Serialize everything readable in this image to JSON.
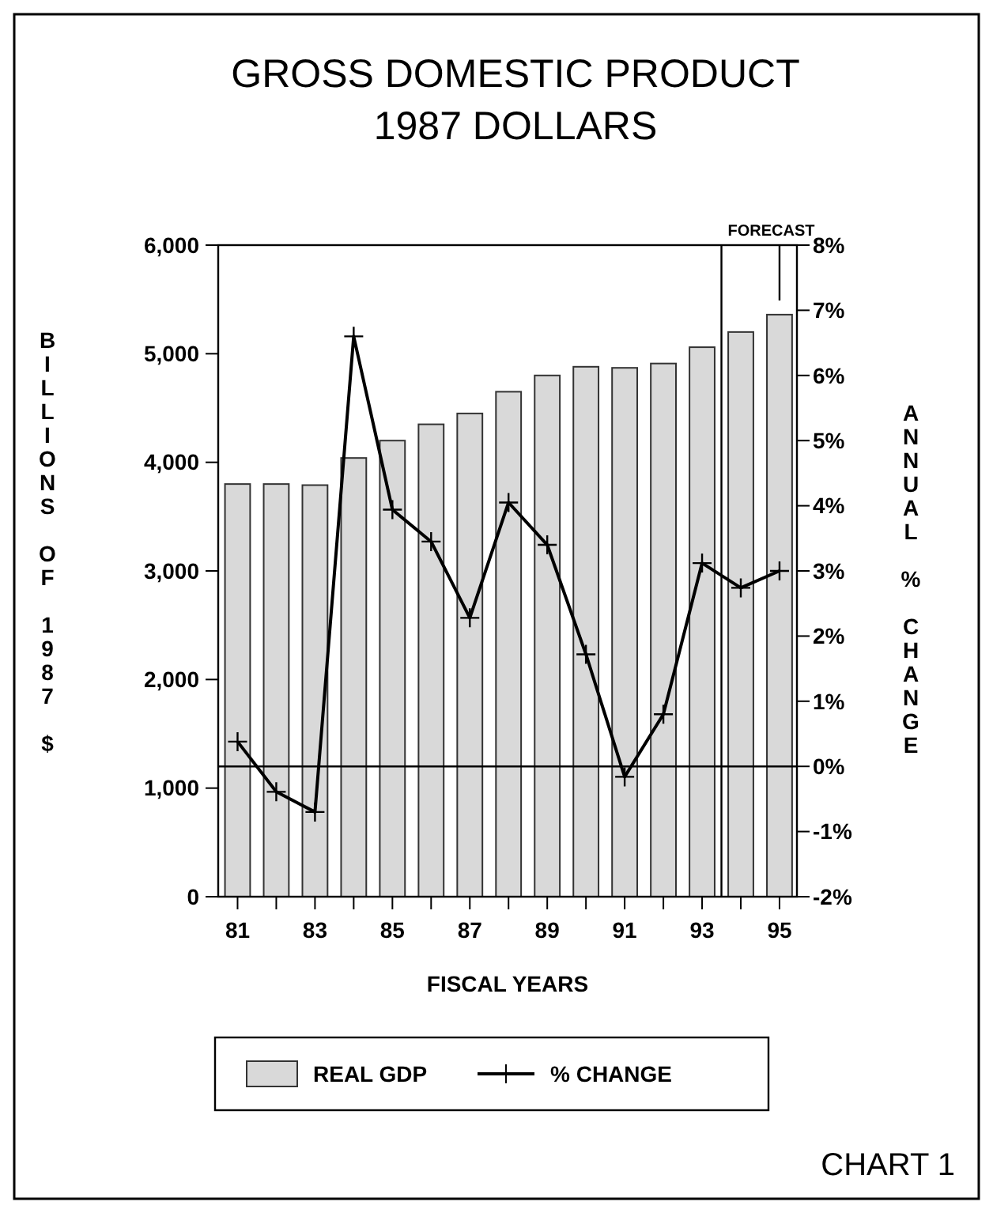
{
  "chart_data": {
    "type": "bar",
    "title": "GROSS DOMESTIC PRODUCT",
    "subtitle": "1987 DOLLARS",
    "xlabel": "FISCAL YEARS",
    "ylabel": "BILLIONS OF 1987 $",
    "y2label": "ANNUAL % CHANGE",
    "x": [
      81,
      82,
      83,
      84,
      85,
      86,
      87,
      88,
      89,
      90,
      91,
      92,
      93,
      94,
      95
    ],
    "series": [
      {
        "name": "REAL GDP",
        "color": "#d9d9d9",
        "values": [
          3800,
          3800,
          3790,
          4040,
          4200,
          4350,
          4450,
          4650,
          4800,
          4880,
          4870,
          4910,
          5060,
          5200,
          5360
        ]
      },
      {
        "name": "% CHANGE",
        "type": "line",
        "axis": "y2",
        "color": "#000000",
        "marker": "cross",
        "line_style": "solid",
        "values": [
          0.38,
          -0.39,
          -0.7,
          6.6,
          3.94,
          3.45,
          2.28,
          4.05,
          3.4,
          1.72,
          -0.16,
          0.8,
          3.12,
          2.74,
          3.0
        ]
      }
    ],
    "xlim": [
      80.5,
      95.45
    ],
    "xticks": [
      81,
      {
        "value": 82,
        "label": null
      },
      83,
      {
        "value": 84,
        "label": null
      },
      85,
      {
        "value": 86,
        "label": null
      },
      87,
      {
        "value": 88,
        "label": null
      },
      89,
      {
        "value": 90,
        "label": null
      },
      91,
      {
        "value": 92,
        "label": null
      },
      93,
      {
        "value": 94,
        "label": null
      },
      95
    ],
    "ylim": [
      0,
      6000
    ],
    "yticks": [
      {
        "value": 0,
        "label": "0"
      },
      {
        "value": 1000,
        "label": "1,000"
      },
      {
        "value": 2000,
        "label": "2,000"
      },
      {
        "value": 3000,
        "label": "3,000"
      },
      {
        "value": 4000,
        "label": "4,000"
      },
      {
        "value": 5000,
        "label": "5,000"
      },
      {
        "value": 6000,
        "label": "6,000"
      }
    ],
    "y2lim": [
      -2,
      8
    ],
    "y2ticks": [
      {
        "value": -2,
        "label": "-2%"
      },
      {
        "value": -1,
        "label": "-1%"
      },
      {
        "value": 0,
        "label": "0%"
      },
      {
        "value": 1,
        "label": "1%"
      },
      {
        "value": 2,
        "label": "2%"
      },
      {
        "value": 3,
        "label": "3%"
      },
      {
        "value": 4,
        "label": "4%"
      },
      {
        "value": 5,
        "label": "5%"
      },
      {
        "value": 6,
        "label": "6%"
      },
      {
        "value": 7,
        "label": "7%"
      },
      {
        "value": 8,
        "label": "8%"
      }
    ],
    "ref_lines": [
      {
        "axis": "y2",
        "value": 0,
        "color": "#000000"
      },
      {
        "axis": "x",
        "value": 93.5,
        "label": "FORECAST",
        "color": "#000000"
      }
    ],
    "grid": false,
    "legend": "bottom",
    "annotations": [
      "CHART 1"
    ]
  }
}
